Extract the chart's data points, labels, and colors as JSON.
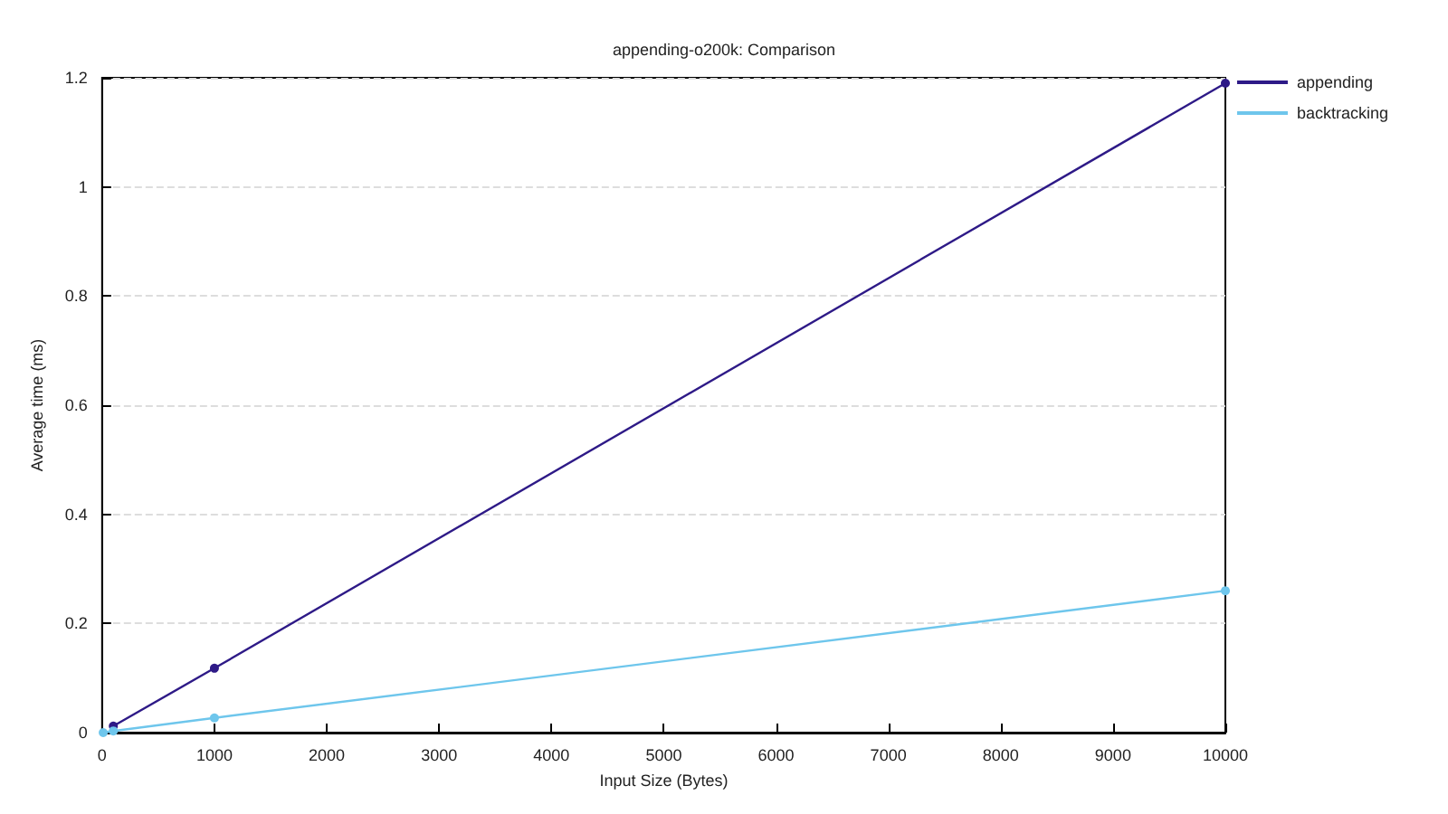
{
  "chart_data": {
    "type": "line",
    "title": "appending-o200k: Comparison",
    "xlabel": "Input Size (Bytes)",
    "ylabel": "Average time (ms)",
    "x": [
      10,
      100,
      1000,
      10000
    ],
    "series": [
      {
        "name": "appending",
        "color": "#2e1a87",
        "values": [
          null,
          0.012,
          0.118,
          1.19
        ]
      },
      {
        "name": "backtracking",
        "color": "#6ec6ec",
        "values": [
          0,
          0.003,
          0.027,
          0.26
        ]
      }
    ],
    "xlim": [
      0,
      10000
    ],
    "xticks": [
      0,
      1000,
      2000,
      3000,
      4000,
      5000,
      6000,
      7000,
      8000,
      9000,
      10000
    ],
    "ylim": [
      0,
      1.2
    ],
    "yticks": [
      0,
      0.2,
      0.4,
      0.6,
      0.8,
      1,
      1.2
    ],
    "grid": "y",
    "legend": "top right",
    "marker": "circle",
    "line_style": "solid"
  }
}
